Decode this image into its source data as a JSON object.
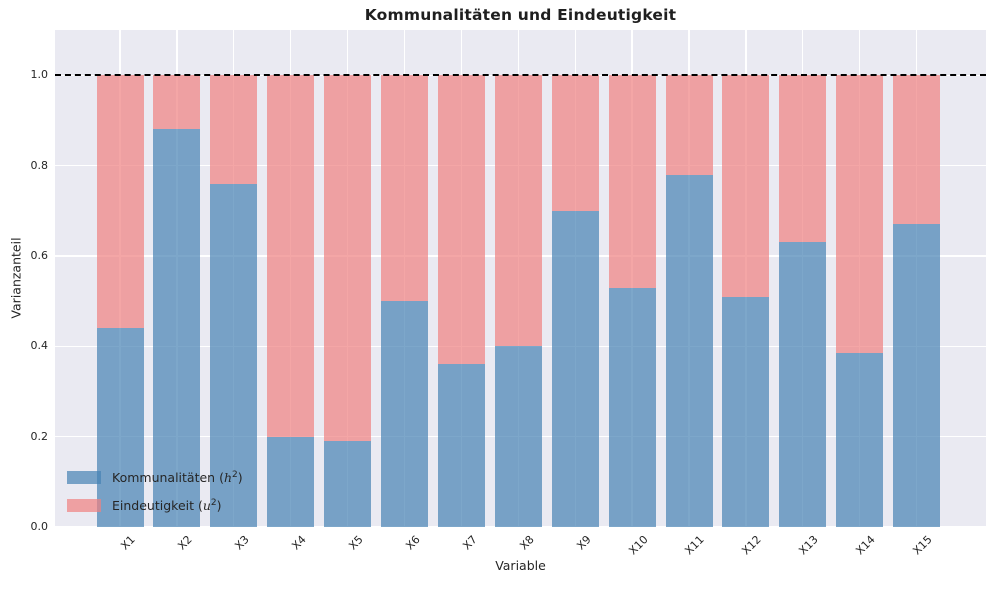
{
  "title": "Kommunalitäten und Eindeutigkeit",
  "chart_data": {
    "type": "bar",
    "stacked": true,
    "title": "Kommunalitäten und Eindeutigkeit",
    "xlabel": "Variable",
    "ylabel": "Varianzanteil",
    "categories": [
      "X1",
      "X2",
      "X3",
      "X4",
      "X5",
      "X6",
      "X7",
      "X8",
      "X9",
      "X10",
      "X11",
      "X12",
      "X13",
      "X14",
      "X15"
    ],
    "series": [
      {
        "name": "Kommunalitäten (h²)",
        "values": [
          0.44,
          0.88,
          0.76,
          0.2,
          0.19,
          0.5,
          0.36,
          0.4,
          0.7,
          0.53,
          0.78,
          0.51,
          0.63,
          0.385,
          0.67
        ],
        "color": "rgba(70,130,180,0.7)"
      },
      {
        "name": "Eindeutigkeit (u²)",
        "values": [
          0.56,
          0.12,
          0.24,
          0.8,
          0.81,
          0.5,
          0.64,
          0.6,
          0.3,
          0.47,
          0.22,
          0.49,
          0.37,
          0.615,
          0.33
        ],
        "color": "rgba(240,128,128,0.7)"
      }
    ],
    "yticks": [
      0.0,
      0.2,
      0.4,
      0.6,
      0.8,
      1.0
    ],
    "ytick_labels": [
      "0.0",
      "0.2",
      "0.4",
      "0.6",
      "0.8",
      "1.0"
    ],
    "ylim": [
      0,
      1.1
    ],
    "grid": true,
    "reference_line": {
      "y": 1.0,
      "style": "dashed",
      "color": "#000000"
    },
    "legend_position": "lower-left"
  },
  "legend": {
    "items": [
      {
        "pre": "Kommunalitäten (",
        "var": "h",
        "sup": "2",
        "post": ")",
        "color": "rgba(70,130,180,0.7)"
      },
      {
        "pre": "Eindeutigkeit (",
        "var": "u",
        "sup": "2",
        "post": ")",
        "color": "rgba(240,128,128,0.7)"
      }
    ]
  },
  "colors": {
    "kommunalitaeten": "rgba(70,130,180,0.7)",
    "eindeutigkeit": "rgba(240,128,128,0.7)",
    "plot_background": "#eaeaf2",
    "gridline": "#ffffff",
    "reference_line": "#000000",
    "text": "#262626"
  }
}
